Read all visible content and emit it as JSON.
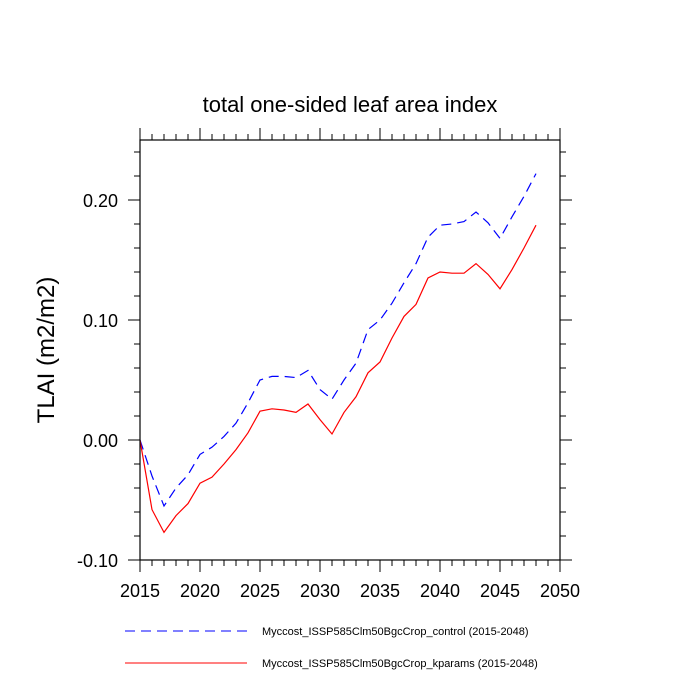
{
  "chart_data": {
    "type": "line",
    "title": "total one-sided leaf area index",
    "xlabel": "",
    "ylabel": "TLAI  (m2/m2)",
    "xlim": [
      2015,
      2050
    ],
    "ylim": [
      -0.1,
      0.25
    ],
    "x_ticks": [
      "2015",
      "2020",
      "2025",
      "2030",
      "2035",
      "2040",
      "2045",
      "2050"
    ],
    "y_ticks": [
      "-0.10",
      "0.00",
      "0.10",
      "0.20"
    ],
    "grid": false,
    "legend_position": "bottom",
    "x": [
      2015,
      2016,
      2017,
      2018,
      2019,
      2020,
      2021,
      2022,
      2023,
      2024,
      2025,
      2026,
      2027,
      2028,
      2029,
      2030,
      2031,
      2032,
      2033,
      2034,
      2035,
      2036,
      2037,
      2038,
      2039,
      2040,
      2041,
      2042,
      2043,
      2044,
      2045,
      2046,
      2047,
      2048
    ],
    "series": [
      {
        "name": "Myccost_ISSP585Clm50BgcCrop_control (2015-2048)",
        "color": "#0000ff",
        "dash": "dashed",
        "values": [
          0.0,
          -0.03,
          -0.055,
          -0.04,
          -0.029,
          -0.012,
          -0.006,
          0.003,
          0.014,
          0.031,
          0.05,
          0.053,
          0.053,
          0.052,
          0.058,
          0.042,
          0.034,
          0.05,
          0.064,
          0.092,
          0.1,
          0.114,
          0.131,
          0.147,
          0.169,
          0.179,
          0.18,
          0.182,
          0.19,
          0.181,
          0.168,
          0.186,
          0.203,
          0.222
        ]
      },
      {
        "name": "Myccost_ISSP585Clm50BgcCrop_kparams (2015-2048)",
        "color": "#ff0000",
        "dash": "solid",
        "values": [
          0.0,
          -0.058,
          -0.077,
          -0.063,
          -0.053,
          -0.036,
          -0.031,
          -0.02,
          -0.008,
          0.006,
          0.024,
          0.026,
          0.025,
          0.023,
          0.03,
          0.017,
          0.005,
          0.023,
          0.036,
          0.056,
          0.065,
          0.085,
          0.103,
          0.113,
          0.135,
          0.14,
          0.139,
          0.139,
          0.147,
          0.138,
          0.126,
          0.142,
          0.16,
          0.179
        ]
      }
    ]
  }
}
